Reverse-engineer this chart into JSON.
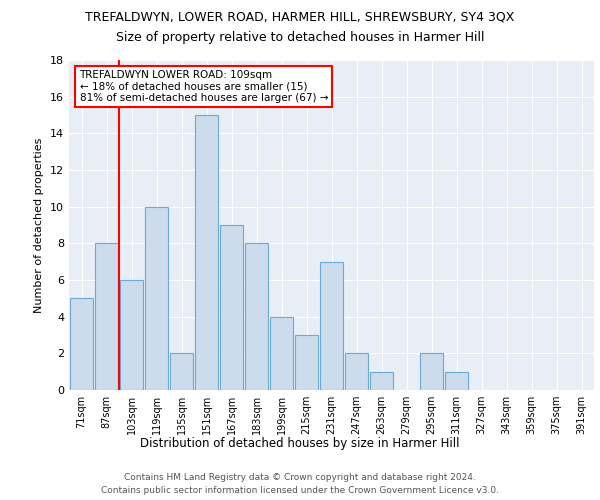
{
  "title": "TREFALDWYN, LOWER ROAD, HARMER HILL, SHREWSBURY, SY4 3QX",
  "subtitle": "Size of property relative to detached houses in Harmer Hill",
  "xlabel": "Distribution of detached houses by size in Harmer Hill",
  "ylabel": "Number of detached properties",
  "bins": [
    "71sqm",
    "87sqm",
    "103sqm",
    "119sqm",
    "135sqm",
    "151sqm",
    "167sqm",
    "183sqm",
    "199sqm",
    "215sqm",
    "231sqm",
    "247sqm",
    "263sqm",
    "279sqm",
    "295sqm",
    "311sqm",
    "327sqm",
    "343sqm",
    "359sqm",
    "375sqm",
    "391sqm"
  ],
  "counts": [
    5,
    8,
    6,
    10,
    2,
    15,
    9,
    8,
    4,
    3,
    7,
    2,
    1,
    0,
    2,
    1,
    0,
    0,
    0,
    0,
    0
  ],
  "bar_color": "#ccdcec",
  "bar_edge_color": "#6aaad4",
  "annotation_line1": "TREFALDWYN LOWER ROAD: 109sqm",
  "annotation_line2": "← 18% of detached houses are smaller (15)",
  "annotation_line3": "81% of semi-detached houses are larger (67) →",
  "annotation_box_color": "white",
  "annotation_box_edge_color": "red",
  "footer_line1": "Contains HM Land Registry data © Crown copyright and database right 2024.",
  "footer_line2": "Contains public sector information licensed under the Crown Government Licence v3.0.",
  "ylim": [
    0,
    18
  ],
  "background_color": "#e8eef5"
}
